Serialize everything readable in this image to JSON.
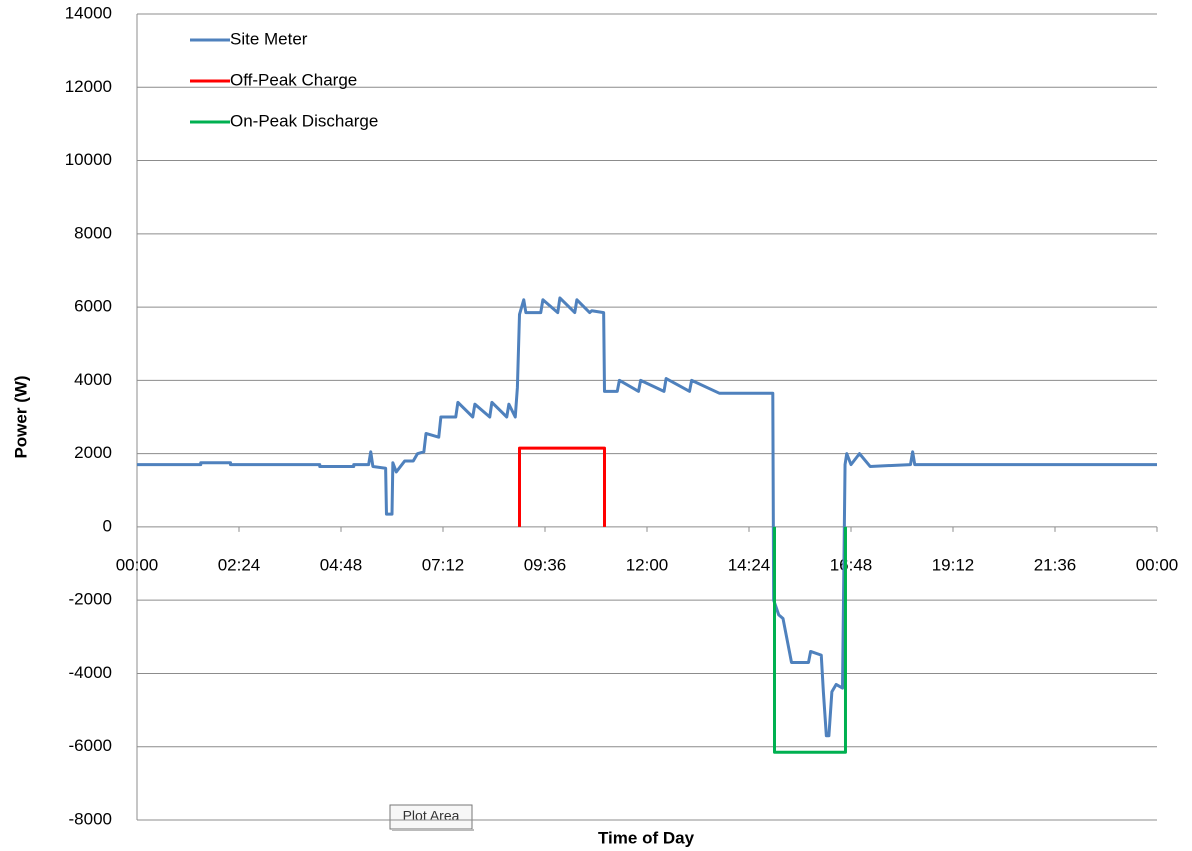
{
  "chart_data": {
    "type": "line",
    "xlabel": "Time of Day",
    "ylabel": "Power (W)",
    "tooltip": "Plot Area",
    "xlim": [
      0,
      24
    ],
    "ylim": [
      -8000,
      14000
    ],
    "xticks": [
      {
        "value": 0,
        "label": "00:00"
      },
      {
        "value": 2.4,
        "label": "02:24"
      },
      {
        "value": 4.8,
        "label": "04:48"
      },
      {
        "value": 7.2,
        "label": "07:12"
      },
      {
        "value": 9.6,
        "label": "09:36"
      },
      {
        "value": 12,
        "label": "12:00"
      },
      {
        "value": 14.4,
        "label": "14:24"
      },
      {
        "value": 16.8,
        "label": "16:48"
      },
      {
        "value": 19.2,
        "label": "19:12"
      },
      {
        "value": 21.6,
        "label": "21:36"
      },
      {
        "value": 24,
        "label": "00:00"
      }
    ],
    "yticks": [
      -8000,
      -6000,
      -4000,
      -2000,
      0,
      2000,
      4000,
      6000,
      8000,
      10000,
      12000,
      14000
    ],
    "grid": true,
    "legend": "upper left",
    "series": [
      {
        "name": "Site Meter",
        "color": "#4f81bd",
        "x": [
          0,
          1.5,
          1.5,
          2.2,
          2.2,
          4.3,
          4.3,
          5.1,
          5.1,
          5.45,
          5.5,
          5.55,
          5.85,
          5.87,
          6.0,
          6.02,
          6.1,
          6.3,
          6.5,
          6.6,
          6.75,
          6.8,
          7.1,
          7.15,
          7.5,
          7.55,
          7.9,
          7.95,
          8.3,
          8.35,
          8.7,
          8.75,
          8.9,
          8.95,
          9.0,
          9.1,
          9.15,
          9.5,
          9.55,
          9.9,
          9.95,
          10.3,
          10.35,
          10.65,
          10.7,
          10.98,
          11.0,
          11.3,
          11.35,
          11.8,
          11.85,
          12.4,
          12.45,
          13.0,
          13.05,
          13.7,
          13.75,
          14.96,
          14.98,
          15.1,
          15.2,
          15.35,
          15.4,
          15.8,
          15.85,
          16.1,
          16.15,
          16.22,
          16.28,
          16.35,
          16.45,
          16.6,
          16.66,
          16.7,
          16.8,
          17.0,
          17.25,
          18.2,
          18.25,
          18.3,
          24
        ],
        "values": [
          1700,
          1700,
          1750,
          1750,
          1700,
          1700,
          1650,
          1650,
          1700,
          1700,
          2050,
          1650,
          1600,
          350,
          350,
          1750,
          1500,
          1800,
          1800,
          2000,
          2050,
          2550,
          2450,
          3000,
          3000,
          3400,
          3000,
          3350,
          3000,
          3400,
          3000,
          3350,
          3000,
          3800,
          5800,
          6200,
          5850,
          5850,
          6200,
          5850,
          6250,
          5850,
          6200,
          5850,
          5900,
          5850,
          3700,
          3700,
          4000,
          3700,
          4000,
          3700,
          4050,
          3700,
          4000,
          3650,
          3650,
          3650,
          -2000,
          -2400,
          -2500,
          -3400,
          -3700,
          -3700,
          -3400,
          -3500,
          -4500,
          -5700,
          -5700,
          -4500,
          -4300,
          -4400,
          1700,
          2000,
          1700,
          2000,
          1650,
          1700,
          2050,
          1700,
          1700
        ]
      },
      {
        "name": "Off-Peak Charge",
        "color": "#ff0000",
        "x": [
          9,
          9,
          11,
          11
        ],
        "values": [
          0,
          2150,
          2150,
          0
        ]
      },
      {
        "name": "On-Peak Discharge",
        "color": "#00b050",
        "x": [
          15,
          15,
          16.67,
          16.67
        ],
        "values": [
          0,
          -6150,
          -6150,
          0
        ]
      }
    ]
  }
}
